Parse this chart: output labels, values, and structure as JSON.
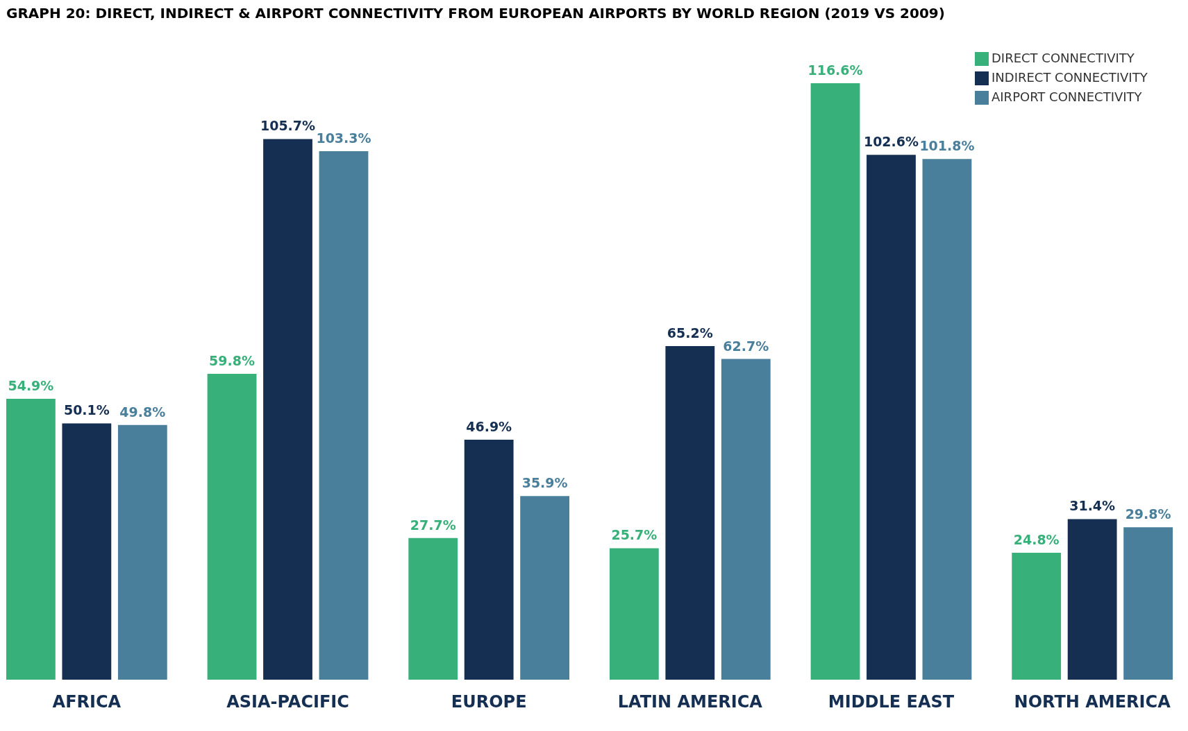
{
  "chart_data": {
    "type": "bar",
    "title": "GRAPH 20: DIRECT, INDIRECT & AIRPORT CONNECTIVITY FROM EUROPEAN AIRPORTS BY WORLD REGION (2019 VS 2009)",
    "categories": [
      "AFRICA",
      "ASIA-PACIFIC",
      "EUROPE",
      "LATIN AMERICA",
      "MIDDLE EAST",
      "NORTH AMERICA"
    ],
    "series": [
      {
        "name": "DIRECT CONNECTIVITY",
        "color": "#38b07a",
        "values": [
          54.9,
          59.8,
          27.7,
          25.7,
          116.6,
          24.8
        ],
        "value_labels": [
          "54.9%",
          "59.8%",
          "27.7%",
          "25.7%",
          "116.6%",
          "24.8%"
        ]
      },
      {
        "name": "INDIRECT CONNECTIVITY",
        "color": "#142f52",
        "values": [
          50.1,
          105.7,
          46.9,
          65.2,
          102.6,
          31.4
        ],
        "value_labels": [
          "50.1%",
          "105.7%",
          "46.9%",
          "65.2%",
          "102.6%",
          "31.4%"
        ]
      },
      {
        "name": "AIRPORT CONNECTIVITY",
        "color": "#4a7f9c",
        "values": [
          49.8,
          103.3,
          35.9,
          62.7,
          101.8,
          29.8
        ],
        "value_labels": [
          "49.8%",
          "103.3%",
          "35.9%",
          "62.7%",
          "101.8%",
          "29.8%"
        ]
      }
    ],
    "legend": "top right"
  }
}
